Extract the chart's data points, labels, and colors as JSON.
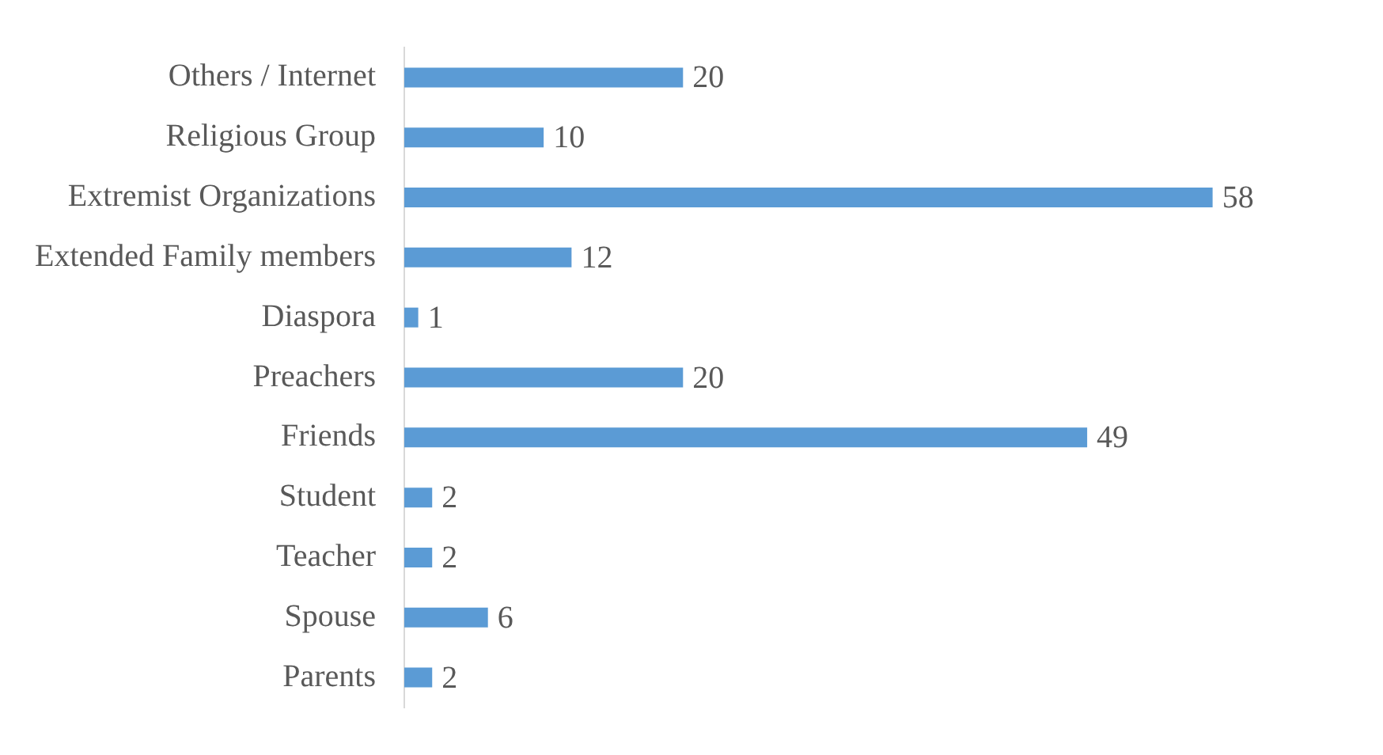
{
  "chart_data": {
    "type": "bar",
    "orientation": "horizontal",
    "categories": [
      "Others / Internet",
      "Religious Group",
      "Extremist Organizations",
      "Extended Family members",
      "Diaspora",
      "Preachers",
      "Friends",
      "Student",
      "Teacher",
      "Spouse",
      "Parents"
    ],
    "values": [
      20,
      10,
      58,
      12,
      1,
      20,
      49,
      2,
      2,
      6,
      2
    ],
    "color": "#5b9bd5",
    "data_labels": true,
    "grid": false,
    "legend": false
  }
}
